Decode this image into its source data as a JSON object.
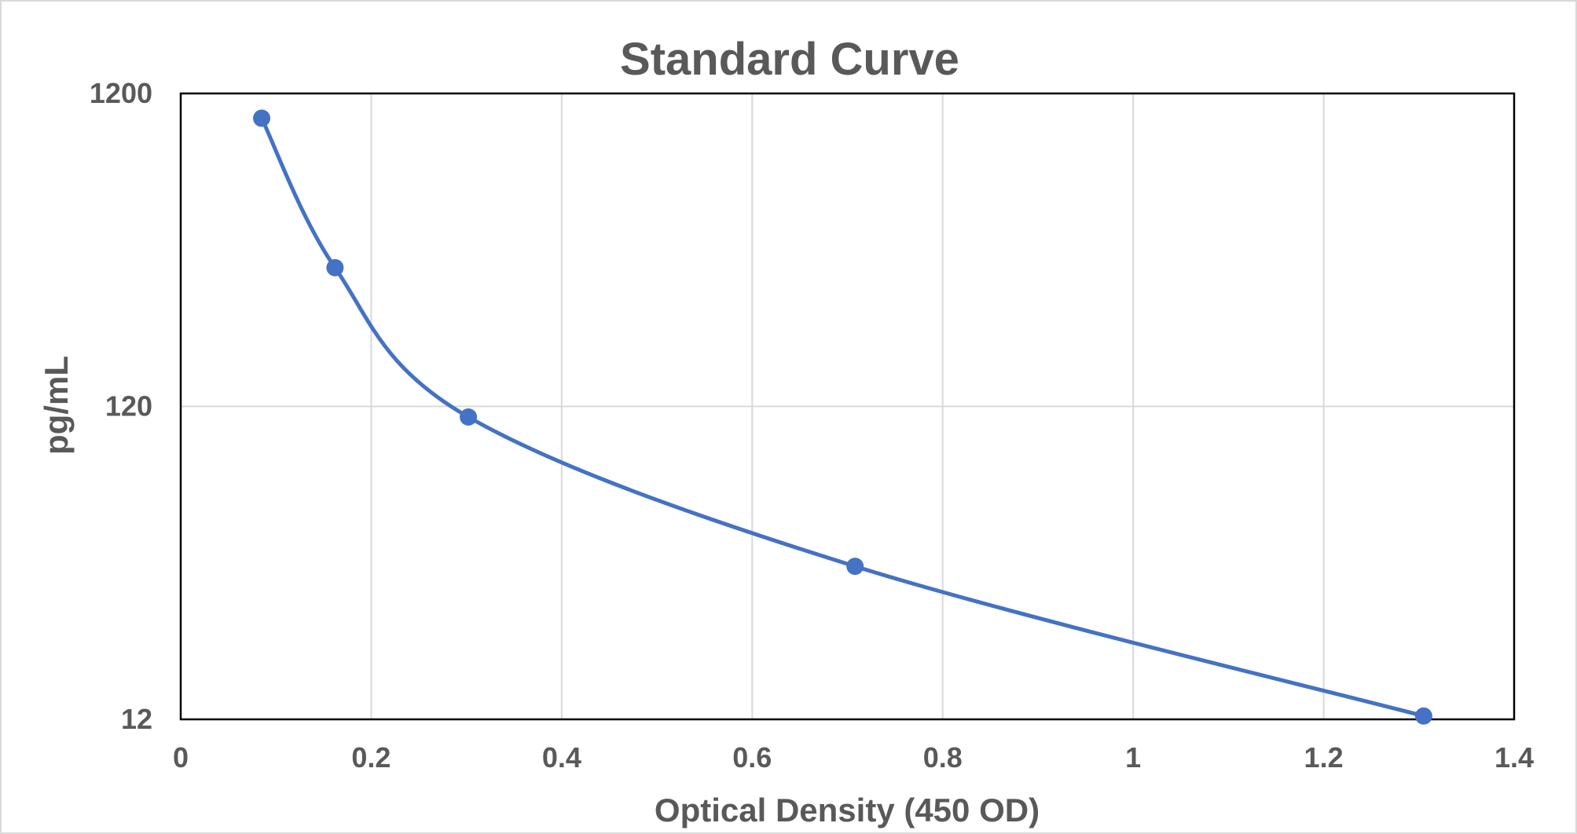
{
  "chart_data": {
    "type": "scatter",
    "title": "Standard Curve",
    "xlabel": "Optical Density (450 OD)",
    "ylabel": "pg/mL",
    "xlim": [
      0,
      1.4
    ],
    "ylim": [
      12,
      1200
    ],
    "y_scale": "log",
    "x_ticks": [
      "0",
      "0.2",
      "0.4",
      "0.6",
      "0.8",
      "1",
      "1.2",
      "1.4"
    ],
    "x_tick_values": [
      0,
      0.2,
      0.4,
      0.6,
      0.8,
      1.0,
      1.2,
      1.4
    ],
    "y_ticks": [
      "12",
      "120",
      "1200"
    ],
    "y_tick_values": [
      12,
      120,
      1200
    ],
    "grid": true,
    "series": [
      {
        "x": [
          0.085,
          0.162,
          0.302,
          0.708,
          1.305
        ],
        "y": [
          1000,
          333,
          111,
          37,
          12.3
        ],
        "color": "#4472c4",
        "smooth_line": true,
        "markers": true
      }
    ]
  }
}
